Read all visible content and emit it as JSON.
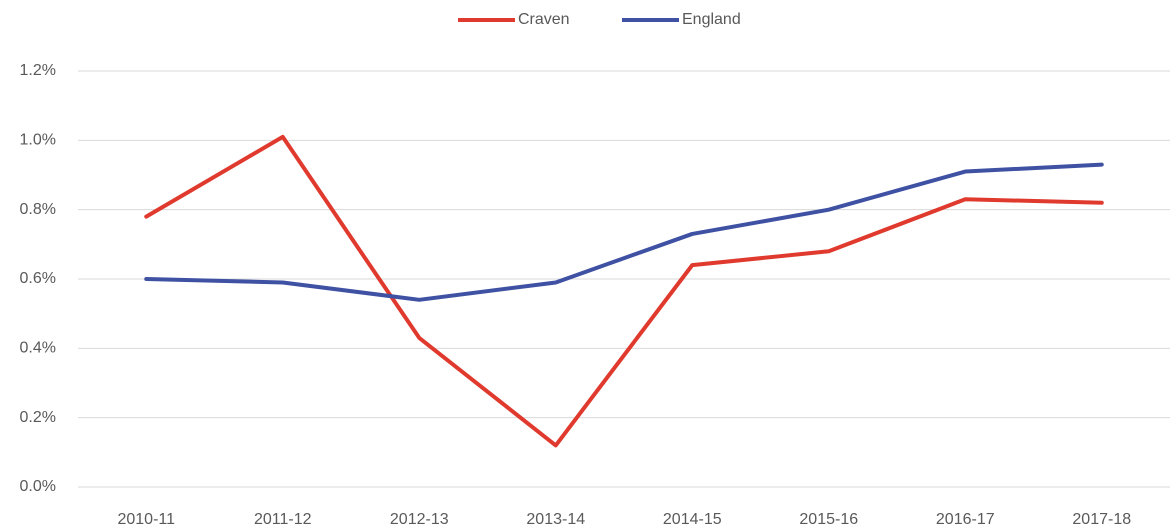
{
  "chart_data": {
    "type": "line",
    "categories": [
      "2010-11",
      "2011-12",
      "2012-13",
      "2013-14",
      "2014-15",
      "2015-16",
      "2016-17",
      "2017-18"
    ],
    "series": [
      {
        "name": "Craven",
        "color": "#e03a2e",
        "values": [
          0.78,
          1.01,
          0.43,
          0.12,
          0.64,
          0.68,
          0.83,
          0.82
        ]
      },
      {
        "name": "England",
        "color": "#3f51a3",
        "values": [
          0.6,
          0.59,
          0.54,
          0.59,
          0.73,
          0.8,
          0.91,
          0.93
        ]
      }
    ],
    "ylim": [
      0,
      1.2
    ],
    "yticks": [
      {
        "value": 0,
        "label": "0.0%"
      },
      {
        "value": 0.2,
        "label": "0.2%"
      },
      {
        "value": 0.4,
        "label": "0.4%"
      },
      {
        "value": 0.6,
        "label": "0.6%"
      },
      {
        "value": 0.8,
        "label": "0.8%"
      },
      {
        "value": 1.0,
        "label": "1.0%"
      },
      {
        "value": 1.2,
        "label": "1.2%"
      }
    ],
    "grid": true,
    "legend": "top"
  }
}
